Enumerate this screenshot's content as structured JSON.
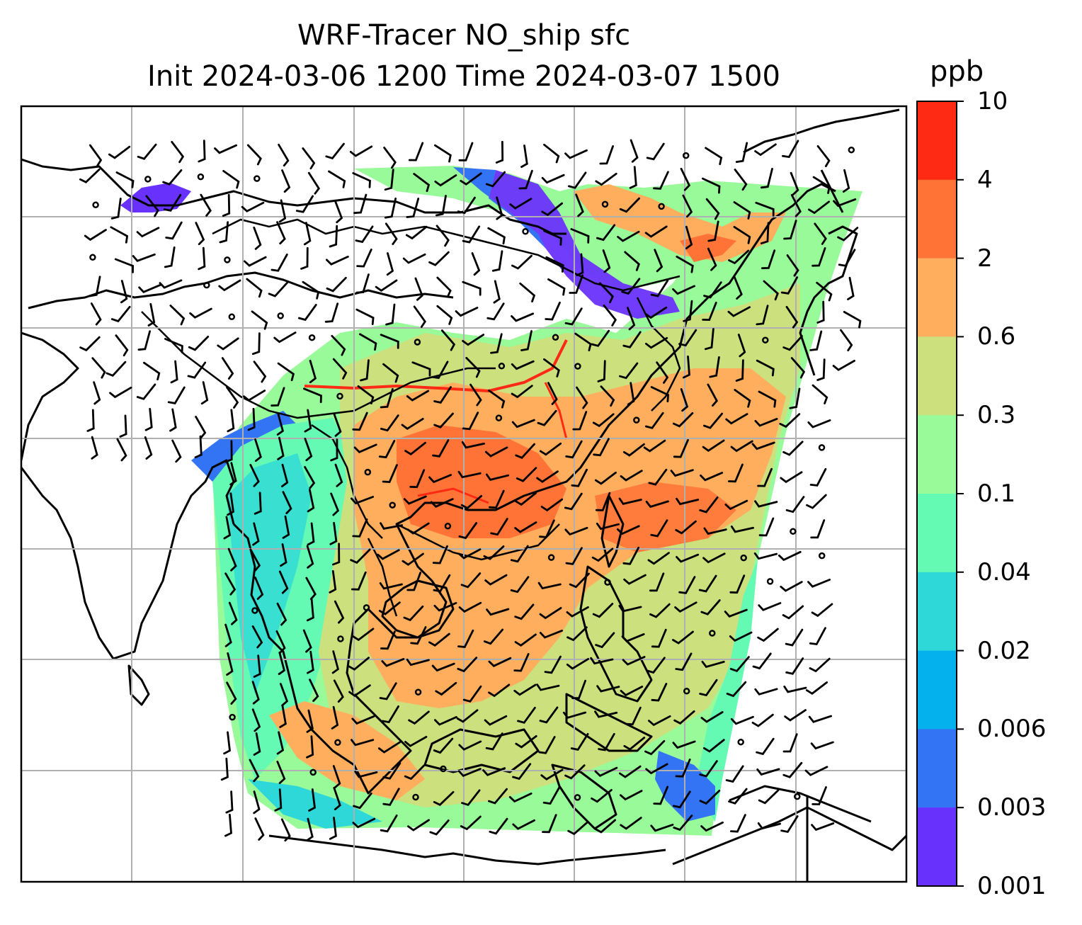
{
  "title": {
    "line1": "WRF-Tracer NO_ship sfc",
    "line2": "Init 2024-03-06 1200 Time 2024-03-07 1500"
  },
  "map": {
    "type": "filled-contour map with wind barbs",
    "region": "East and Southeast Asia",
    "gridlines": true,
    "icons": [
      "wind-barb-icon",
      "calm-wind-circle-icon"
    ]
  },
  "colorbar": {
    "unit": "ppb",
    "ticks": [
      "10",
      "4",
      "2",
      "0.6",
      "0.3",
      "0.1",
      "0.04",
      "0.02",
      "0.006",
      "0.003",
      "0.001"
    ],
    "colors": [
      "#ff2a14",
      "#ff7337",
      "#ffae5e",
      "#cce07e",
      "#98fa98",
      "#64fab4",
      "#2ed8d8",
      "#04b1ec",
      "#3374f5",
      "#6932fc"
    ]
  }
}
